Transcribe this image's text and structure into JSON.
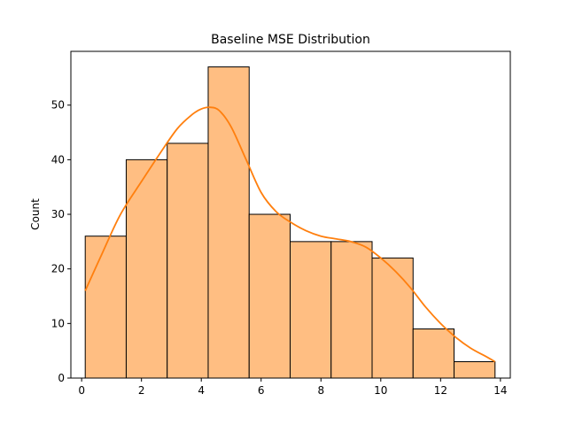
{
  "chart_data": {
    "type": "bar",
    "title": "Baseline MSE Distribution",
    "xlabel": "",
    "ylabel": "Count",
    "xlim": [
      -0.36,
      14.33
    ],
    "ylim": [
      0,
      59.85
    ],
    "xticks": [
      0,
      2,
      4,
      6,
      8,
      10,
      12,
      14
    ],
    "yticks": [
      0,
      10,
      20,
      30,
      40,
      50
    ],
    "grid": false,
    "bins": [
      {
        "x0": 0.12,
        "x1": 1.49,
        "count": 26
      },
      {
        "x0": 1.49,
        "x1": 2.86,
        "count": 40
      },
      {
        "x0": 2.86,
        "x1": 4.23,
        "count": 43
      },
      {
        "x0": 4.23,
        "x1": 5.6,
        "count": 57
      },
      {
        "x0": 5.6,
        "x1": 6.97,
        "count": 30
      },
      {
        "x0": 6.97,
        "x1": 8.34,
        "count": 25
      },
      {
        "x0": 8.34,
        "x1": 9.71,
        "count": 25
      },
      {
        "x0": 9.71,
        "x1": 11.08,
        "count": 22
      },
      {
        "x0": 11.08,
        "x1": 12.45,
        "count": 9
      },
      {
        "x0": 12.45,
        "x1": 13.82,
        "count": 3
      }
    ],
    "kde": {
      "x": [
        0.12,
        0.7,
        1.3,
        2.0,
        2.6,
        3.2,
        3.7,
        4.0,
        4.3,
        4.6,
        5.0,
        5.5,
        6.0,
        6.5,
        7.0,
        7.5,
        8.0,
        8.5,
        9.0,
        9.5,
        10.0,
        10.5,
        11.0,
        11.5,
        12.0,
        12.5,
        13.0,
        13.5,
        13.82
      ],
      "y": [
        16.0,
        23.0,
        30.0,
        36.0,
        41.0,
        45.7,
        48.3,
        49.3,
        49.6,
        49.0,
        46.0,
        40.0,
        34.0,
        30.5,
        28.5,
        27.0,
        26.0,
        25.5,
        25.0,
        24.0,
        22.0,
        19.5,
        16.5,
        13.0,
        10.0,
        7.5,
        5.5,
        4.0,
        3.0
      ]
    },
    "colors": {
      "bar_fill": "#ffbe82",
      "bar_edge": "#000000",
      "kde_line": "#ff7f0e"
    }
  }
}
